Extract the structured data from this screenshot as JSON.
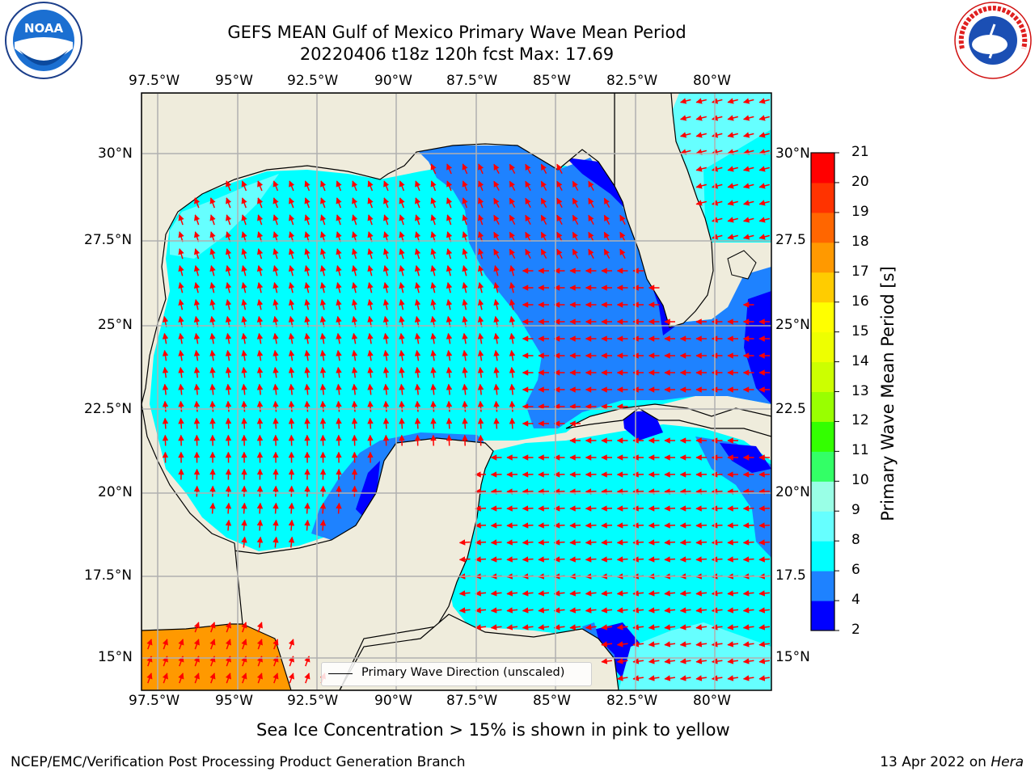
{
  "title": {
    "line1": "GEFS MEAN Gulf of Mexico Primary Wave Mean Period",
    "line2": "20220406 t18z 120h fcst   Max: 17.69"
  },
  "axes": {
    "lon_labels": [
      "97.5°W",
      "95°W",
      "92.5°W",
      "90°W",
      "87.5°W",
      "85°W",
      "82.5°W",
      "80°W"
    ],
    "lat_labels_left": [
      "30°N",
      "27.5°N",
      "25°N",
      "22.5°N",
      "20°N",
      "17.5°N",
      "15°N"
    ],
    "lat_labels_right": [
      "30°N",
      "27.5",
      "25°N",
      "22.5",
      "20°N",
      "17.5",
      "15°N"
    ]
  },
  "legend": {
    "label": "Primary Wave Direction (unscaled)"
  },
  "colorbar": {
    "label": "Primary Wave Mean Period [s]",
    "ticks": [
      "2",
      "4",
      "6",
      "8",
      "9",
      "10",
      "11",
      "12",
      "13",
      "14",
      "15",
      "16",
      "17",
      "18",
      "19",
      "20",
      "21"
    ],
    "colors": [
      "#0000ff",
      "#1e82ff",
      "#00ffff",
      "#66ffff",
      "#99ffe6",
      "#33ff66",
      "#33ff00",
      "#99ff00",
      "#ccff00",
      "#eeff00",
      "#ffff00",
      "#ffcc00",
      "#ff9900",
      "#ff6600",
      "#ff3300",
      "#ff0000"
    ]
  },
  "map_colors": {
    "land": "#efecdc",
    "period_under_4": "#0000ff",
    "period_4_6": "#1e82ff",
    "period_6_8": "#00ffff",
    "period_8_9": "#66ffff",
    "period_17_18": "#ff9900",
    "arrow": "#ff0000"
  },
  "sea_ice_note": "Sea Ice Concentration > 15% is shown in pink to yellow",
  "footer": {
    "left": "NCEP/EMC/Verification Post Processing Product Generation Branch",
    "right_date": "13 Apr 2022 on ",
    "right_machine": "Hera"
  },
  "logos": {
    "left": "NOAA",
    "right_top": "NATIONAL WEATHER SERVICE"
  }
}
